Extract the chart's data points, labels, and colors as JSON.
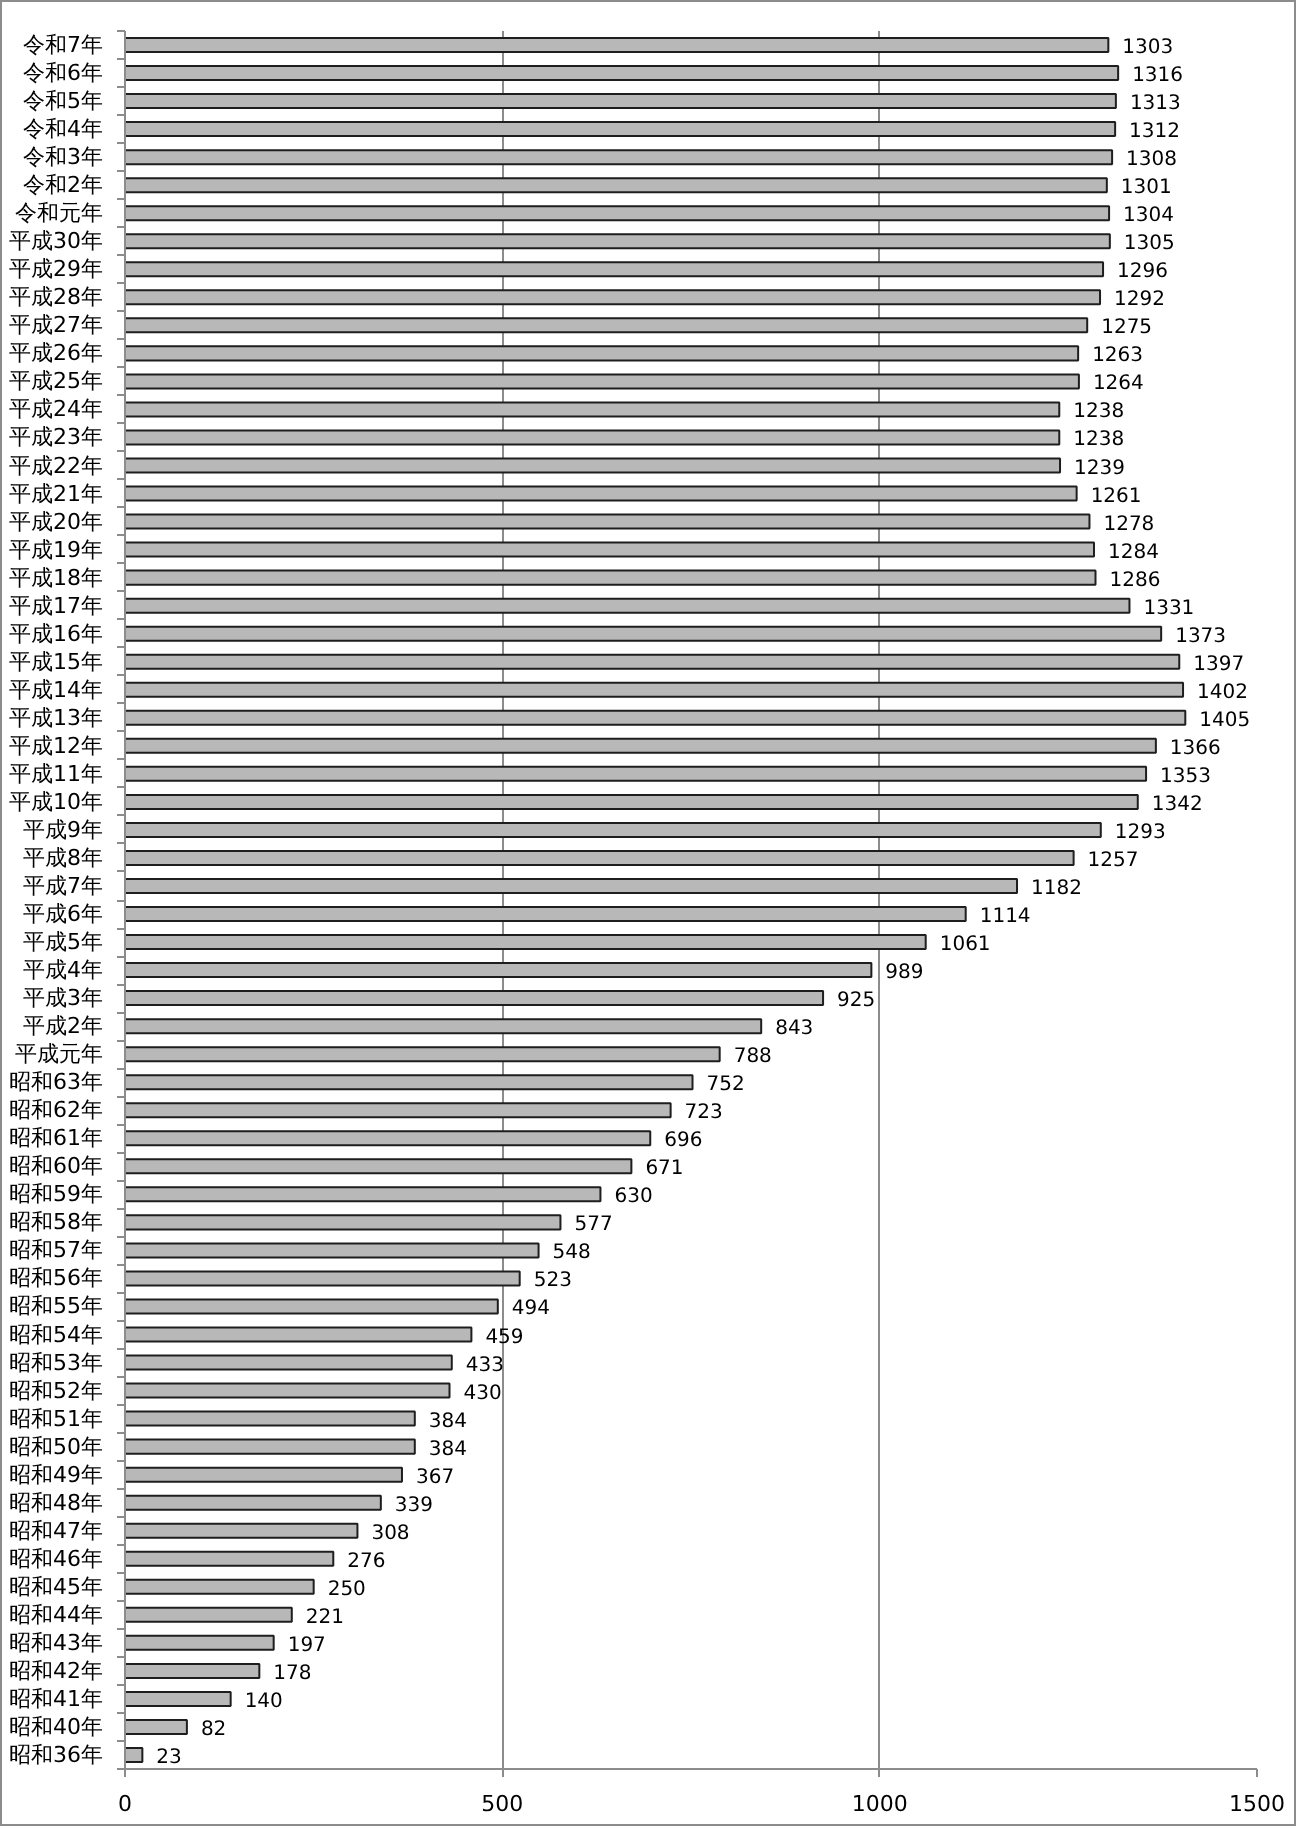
{
  "chart_data": {
    "type": "bar",
    "orientation": "horizontal",
    "categories": [
      "令和7年",
      "令和6年",
      "令和5年",
      "令和4年",
      "令和3年",
      "令和2年",
      "令和元年",
      "平成30年",
      "平成29年",
      "平成28年",
      "平成27年",
      "平成26年",
      "平成25年",
      "平成24年",
      "平成23年",
      "平成22年",
      "平成21年",
      "平成20年",
      "平成19年",
      "平成18年",
      "平成17年",
      "平成16年",
      "平成15年",
      "平成14年",
      "平成13年",
      "平成12年",
      "平成11年",
      "平成10年",
      "平成9年",
      "平成8年",
      "平成7年",
      "平成6年",
      "平成5年",
      "平成4年",
      "平成3年",
      "平成2年",
      "平成元年",
      "昭和63年",
      "昭和62年",
      "昭和61年",
      "昭和60年",
      "昭和59年",
      "昭和58年",
      "昭和57年",
      "昭和56年",
      "昭和55年",
      "昭和54年",
      "昭和53年",
      "昭和52年",
      "昭和51年",
      "昭和50年",
      "昭和49年",
      "昭和48年",
      "昭和47年",
      "昭和46年",
      "昭和45年",
      "昭和44年",
      "昭和43年",
      "昭和42年",
      "昭和41年",
      "昭和40年",
      "昭和36年"
    ],
    "values": [
      1303,
      1316,
      1313,
      1312,
      1308,
      1301,
      1304,
      1305,
      1296,
      1292,
      1275,
      1263,
      1264,
      1238,
      1238,
      1239,
      1261,
      1278,
      1284,
      1286,
      1331,
      1373,
      1397,
      1402,
      1405,
      1366,
      1353,
      1342,
      1293,
      1257,
      1182,
      1114,
      1061,
      989,
      925,
      843,
      788,
      752,
      723,
      696,
      671,
      630,
      577,
      548,
      523,
      494,
      459,
      433,
      430,
      384,
      384,
      367,
      339,
      308,
      276,
      250,
      221,
      197,
      178,
      140,
      82,
      23
    ],
    "color": "#b8b8b8",
    "xlim": [
      0,
      1500
    ],
    "xticks": [
      0,
      500,
      1000,
      1500
    ],
    "grid": "x",
    "data_labels": true
  }
}
